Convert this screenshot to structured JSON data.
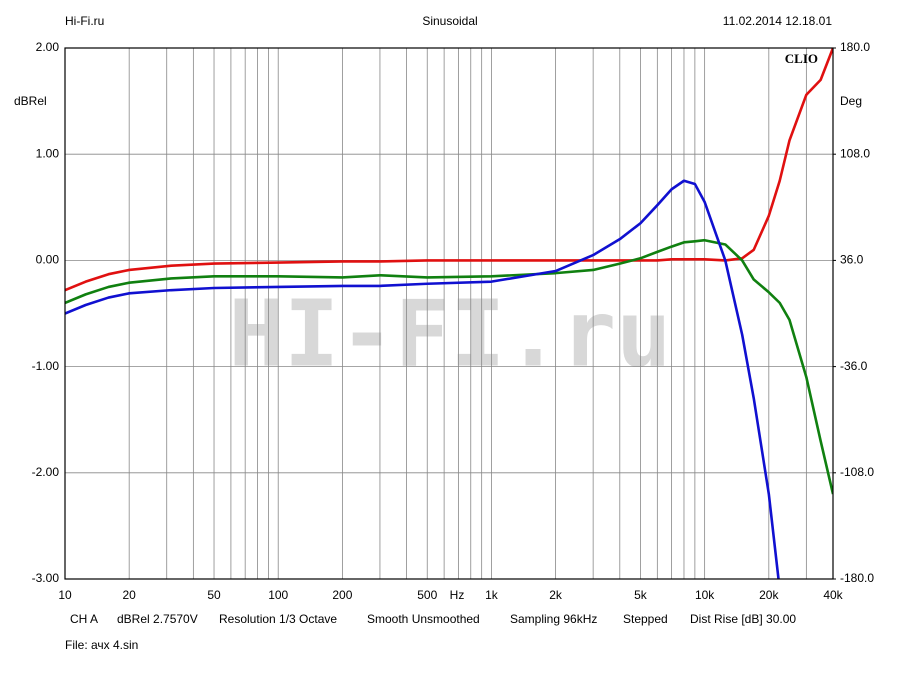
{
  "header": {
    "left": "Hi-Fi.ru",
    "center": "Sinusoidal",
    "right": "11.02.2014 12.18.01"
  },
  "chart_data": {
    "type": "line",
    "brand": "CLIO",
    "watermark": "HI-FI.ru",
    "x_label": "Hz",
    "y_label": "dBRel",
    "y2_label": "Deg",
    "log_x": true,
    "grid": true,
    "xlim": [
      10,
      40000
    ],
    "xticks": [
      10,
      20,
      50,
      100,
      200,
      500,
      {
        "value": 1000,
        "label": "1k"
      },
      {
        "value": 2000,
        "label": "2k"
      },
      {
        "value": 5000,
        "label": "5k"
      },
      {
        "value": 10000,
        "label": "10k"
      },
      {
        "value": 20000,
        "label": "20k"
      },
      {
        "value": 40000,
        "label": "40k"
      }
    ],
    "xgrid": [
      30,
      40,
      60,
      70,
      80,
      90,
      300,
      400,
      600,
      700,
      800,
      900,
      3000,
      4000,
      6000,
      7000,
      8000,
      9000,
      30000
    ],
    "ylim": [
      -3,
      2
    ],
    "yticks": [
      {
        "value": 2,
        "label": "2.00"
      },
      {
        "value": 1,
        "label": "1.00"
      },
      {
        "value": 0,
        "label": "0.00"
      },
      {
        "value": -1,
        "label": "-1.00"
      },
      {
        "value": -2,
        "label": "-2.00"
      },
      {
        "value": -3,
        "label": "-3.00"
      }
    ],
    "y2lim": [
      -180,
      180
    ],
    "y2ticks": [
      {
        "value": 180,
        "label": "180.0"
      },
      {
        "value": 108,
        "label": "108.0"
      },
      {
        "value": 36,
        "label": "36.0"
      },
      {
        "value": -36,
        "label": "-36.0"
      },
      {
        "value": -108,
        "label": "-108.0"
      },
      {
        "value": -180,
        "label": "-180.0"
      }
    ],
    "x": [
      10,
      12.5,
      16,
      20,
      31.5,
      50,
      100,
      200,
      300,
      500,
      1000,
      2000,
      3000,
      4000,
      5000,
      6000,
      7000,
      8000,
      9000,
      10000,
      12500,
      15000,
      17000,
      20000,
      22500,
      25000,
      30000,
      35000,
      40000
    ],
    "series": [
      {
        "color": "#e01010",
        "values": [
          -0.28,
          -0.2,
          -0.13,
          -0.09,
          -0.05,
          -0.03,
          -0.02,
          -0.01,
          -0.01,
          0,
          0,
          0,
          0,
          0,
          0,
          0,
          0.01,
          0.01,
          0.01,
          0.01,
          0,
          0.02,
          0.1,
          0.42,
          0.75,
          1.13,
          1.56,
          1.7,
          2.0
        ]
      },
      {
        "color": "#108010",
        "values": [
          -0.4,
          -0.32,
          -0.25,
          -0.21,
          -0.17,
          -0.15,
          -0.15,
          -0.16,
          -0.14,
          -0.16,
          -0.15,
          -0.12,
          -0.09,
          -0.03,
          0.02,
          0.08,
          0.13,
          0.17,
          0.18,
          0.19,
          0.15,
          0.0,
          -0.18,
          -0.3,
          -0.4,
          -0.56,
          -1.1,
          -1.7,
          -2.2
        ]
      },
      {
        "color": "#1010d0",
        "values": [
          -0.5,
          -0.42,
          -0.35,
          -0.31,
          -0.28,
          -0.26,
          -0.25,
          -0.24,
          -0.24,
          -0.22,
          -0.2,
          -0.1,
          0.05,
          0.2,
          0.35,
          0.52,
          0.67,
          0.75,
          0.72,
          0.55,
          0.0,
          -0.7,
          -1.3,
          -2.2,
          -3.1,
          null,
          null,
          null,
          null
        ]
      }
    ]
  },
  "footer": {
    "items": [
      "CH A",
      "dBRel 2.7570V",
      "Resolution 1/3 Octave",
      "Smooth Unsmoothed",
      "Sampling 96kHz",
      "Stepped",
      "Dist Rise [dB] 30.00"
    ],
    "file": "File: ачх 4.sin"
  }
}
